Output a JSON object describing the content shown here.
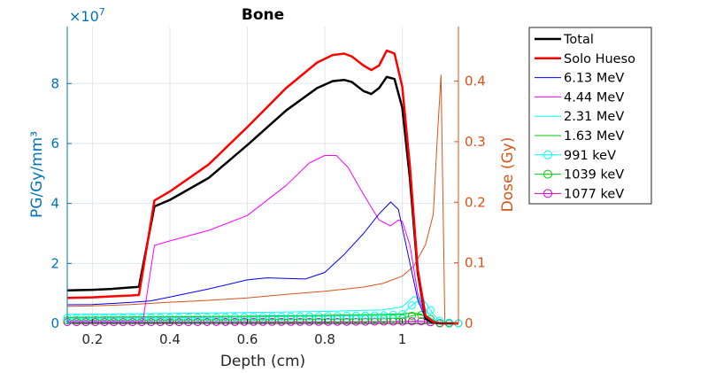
{
  "chart_data": {
    "type": "line",
    "title": "Bone",
    "xlabel": "Depth (cm)",
    "ylabel_left": "PG/Gy/mm³",
    "ylabel_right": "Dose (Gy)",
    "y_left_exponent": "×10",
    "y_left_exponent_power": "7",
    "xlim": [
      0.135,
      1.145
    ],
    "ylim_left": [
      0,
      9.9
    ],
    "ylim_right": [
      0,
      0.49
    ],
    "grid": true,
    "legend_placement": "outside-right",
    "x_ticks": [
      0.2,
      0.4,
      0.6,
      0.8,
      1
    ],
    "x_tick_labels": [
      "0.2",
      "0.4",
      "0.6",
      "0.8",
      "1"
    ],
    "y_left_ticks": [
      0,
      2,
      4,
      6,
      8
    ],
    "y_left_tick_labels": [
      "0",
      "2",
      "4",
      "6",
      "8"
    ],
    "y_right_ticks": [
      0,
      0.1,
      0.2,
      0.3,
      0.4
    ],
    "y_right_tick_labels": [
      "0",
      "0.1",
      "0.2",
      "0.3",
      "0.4"
    ],
    "colors": {
      "left_axis": "#0072BD",
      "right_axis": "#D95319",
      "grid": "#dfe7ef"
    },
    "series": [
      {
        "name": "Total",
        "color": "#000000",
        "width": 2.5,
        "marker": "none",
        "axis": "left",
        "x": [
          0.135,
          0.2,
          0.25,
          0.3,
          0.32,
          0.36,
          0.4,
          0.5,
          0.6,
          0.7,
          0.78,
          0.82,
          0.85,
          0.87,
          0.9,
          0.92,
          0.94,
          0.96,
          0.98,
          1.0,
          1.02,
          1.04,
          1.06,
          1.08,
          1.1,
          1.145
        ],
        "y": [
          1.1,
          1.12,
          1.15,
          1.2,
          1.22,
          3.9,
          4.12,
          4.85,
          5.95,
          7.1,
          7.85,
          8.08,
          8.12,
          8.05,
          7.75,
          7.65,
          7.85,
          8.22,
          8.15,
          7.2,
          4.8,
          1.7,
          0.15,
          0.02,
          0.0,
          0.0
        ]
      },
      {
        "name": "Solo Hueso",
        "color": "#ff0000",
        "width": 2.5,
        "marker": "none",
        "axis": "left",
        "x": [
          0.135,
          0.2,
          0.25,
          0.3,
          0.32,
          0.36,
          0.4,
          0.5,
          0.6,
          0.7,
          0.78,
          0.82,
          0.85,
          0.87,
          0.9,
          0.92,
          0.94,
          0.96,
          0.98,
          1.0,
          1.02,
          1.04,
          1.06,
          1.08,
          1.1,
          1.145
        ],
        "y": [
          0.85,
          0.87,
          0.9,
          0.93,
          0.95,
          4.1,
          4.4,
          5.3,
          6.55,
          7.85,
          8.7,
          8.95,
          9.0,
          8.9,
          8.6,
          8.45,
          8.6,
          9.1,
          9.0,
          7.9,
          5.2,
          1.8,
          0.25,
          0.05,
          0.0,
          0.0
        ]
      },
      {
        "name": "6.13 MeV",
        "color": "#0000ff",
        "width": 1,
        "marker": "none",
        "axis": "left",
        "x": [
          0.135,
          0.2,
          0.3,
          0.35,
          0.4,
          0.5,
          0.6,
          0.65,
          0.7,
          0.75,
          0.8,
          0.85,
          0.9,
          0.94,
          0.97,
          0.99,
          1.0,
          1.02,
          1.04,
          1.06,
          1.08,
          1.1,
          1.145
        ],
        "y": [
          0.62,
          0.63,
          0.7,
          0.75,
          0.88,
          1.15,
          1.45,
          1.52,
          1.5,
          1.48,
          1.7,
          2.3,
          3.0,
          3.65,
          4.05,
          3.8,
          3.2,
          2.0,
          0.8,
          0.15,
          0.01,
          0.0,
          0.0
        ]
      },
      {
        "name": "4.44 MeV",
        "color": "#ff00ff",
        "width": 1,
        "marker": "none",
        "axis": "left",
        "x": [
          0.135,
          0.2,
          0.3,
          0.33,
          0.36,
          0.4,
          0.5,
          0.6,
          0.7,
          0.76,
          0.8,
          0.83,
          0.86,
          0.9,
          0.94,
          0.97,
          0.99,
          1.0,
          1.02,
          1.04,
          1.06,
          1.08,
          1.1,
          1.145
        ],
        "y": [
          0.05,
          0.05,
          0.05,
          0.05,
          2.6,
          2.75,
          3.1,
          3.6,
          4.6,
          5.35,
          5.6,
          5.6,
          5.2,
          4.3,
          3.45,
          3.25,
          3.45,
          3.4,
          2.6,
          1.0,
          0.2,
          0.02,
          0.0,
          0.0
        ]
      },
      {
        "name": "2.31 MeV",
        "color": "#00ffff",
        "width": 1,
        "marker": "none",
        "axis": "left",
        "x": [
          0.135,
          0.4,
          0.6,
          0.8,
          0.95,
          1.0,
          1.03,
          1.05,
          1.07,
          1.1,
          1.145
        ],
        "y": [
          0.3,
          0.33,
          0.36,
          0.4,
          0.45,
          0.55,
          0.9,
          0.75,
          0.2,
          0.0,
          0.0
        ]
      },
      {
        "name": "1.63 MeV",
        "color": "#00cc00",
        "width": 1,
        "marker": "none",
        "axis": "left",
        "x": [
          0.135,
          0.4,
          0.6,
          0.8,
          0.95,
          1.0,
          1.03,
          1.05,
          1.07,
          1.1,
          1.145
        ],
        "y": [
          0.2,
          0.22,
          0.24,
          0.27,
          0.3,
          0.32,
          0.35,
          0.3,
          0.1,
          0.0,
          0.0
        ]
      },
      {
        "name": "991 keV",
        "color": "#00ffff",
        "width": 1,
        "marker": "circle",
        "axis": "left",
        "x": [
          0.135,
          0.4,
          0.6,
          0.8,
          0.95,
          1.0,
          1.02,
          1.04,
          1.06,
          1.08,
          1.1,
          1.145
        ],
        "y": [
          0.18,
          0.19,
          0.21,
          0.24,
          0.27,
          0.3,
          0.55,
          0.75,
          0.7,
          0.3,
          0.05,
          0.0
        ]
      },
      {
        "name": "1039 keV",
        "color": "#00cc00",
        "width": 1,
        "marker": "circle",
        "axis": "left",
        "x": [
          0.135,
          0.4,
          0.6,
          0.8,
          0.95,
          1.0,
          1.04,
          1.06,
          1.08,
          1.1,
          1.145
        ],
        "y": [
          0.1,
          0.11,
          0.12,
          0.14,
          0.15,
          0.17,
          0.3,
          0.25,
          0.1,
          0.0,
          0.0
        ]
      },
      {
        "name": "1077 keV",
        "color": "#cc00cc",
        "width": 1,
        "marker": "circle",
        "axis": "left",
        "x": [
          0.135,
          0.4,
          0.6,
          0.8,
          0.95,
          1.0,
          1.04,
          1.06,
          1.08,
          1.1,
          1.145
        ],
        "y": [
          0.04,
          0.04,
          0.05,
          0.05,
          0.06,
          0.06,
          0.08,
          0.06,
          0.02,
          0.0,
          0.0
        ]
      },
      {
        "name": "Dose",
        "legend": false,
        "color": "#D95319",
        "width": 1,
        "marker": "none",
        "axis": "right",
        "x": [
          0.135,
          0.2,
          0.3,
          0.4,
          0.5,
          0.6,
          0.7,
          0.8,
          0.9,
          0.95,
          1.0,
          1.03,
          1.06,
          1.08,
          1.09,
          1.1,
          1.11,
          1.13,
          1.145
        ],
        "y": [
          0.028,
          0.029,
          0.031,
          0.035,
          0.038,
          0.042,
          0.048,
          0.053,
          0.06,
          0.066,
          0.078,
          0.095,
          0.13,
          0.18,
          0.3,
          0.41,
          0.0,
          0.0,
          0.0
        ]
      }
    ]
  }
}
